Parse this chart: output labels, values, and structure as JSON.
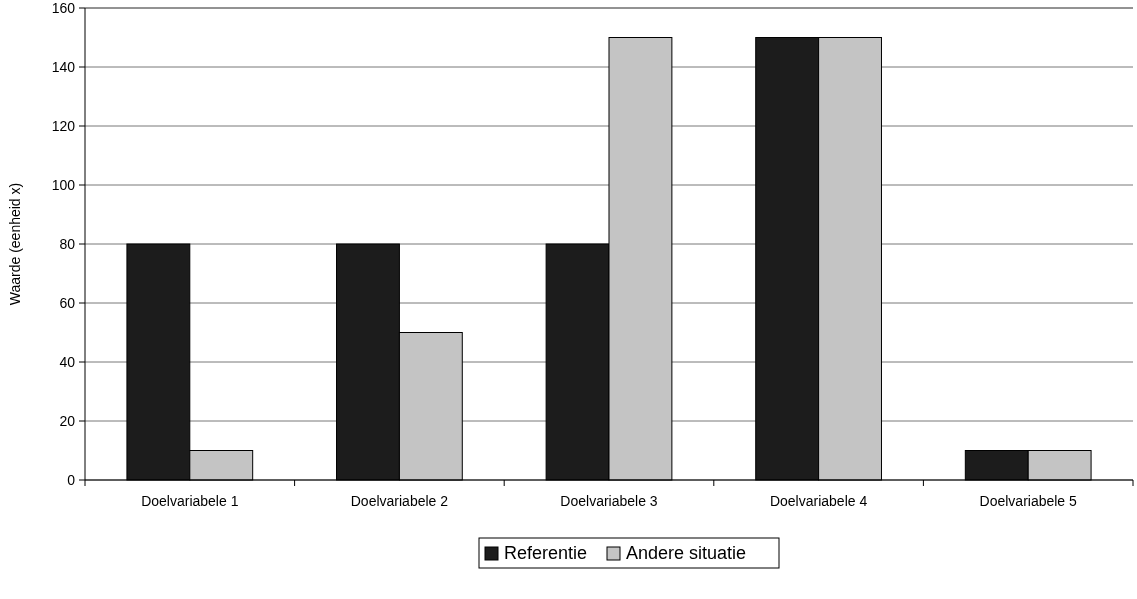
{
  "chart_data": {
    "type": "bar",
    "ylabel": "Waarde (eenheid x)",
    "categories": [
      "Doelvariabele 1",
      "Doelvariabele 2",
      "Doelvariabele 3",
      "Doelvariabele 4",
      "Doelvariabele 5"
    ],
    "series": [
      {
        "name": "Referentie",
        "color": "#1c1c1c",
        "values": [
          80,
          80,
          80,
          150,
          10
        ]
      },
      {
        "name": "Andere situatie",
        "color": "#c4c4c4",
        "values": [
          10,
          50,
          150,
          150,
          10
        ]
      }
    ],
    "ylim": [
      0,
      160
    ],
    "yticks": [
      0,
      20,
      40,
      60,
      80,
      100,
      120,
      140,
      160
    ],
    "grid": "y",
    "legend": "bottom"
  }
}
